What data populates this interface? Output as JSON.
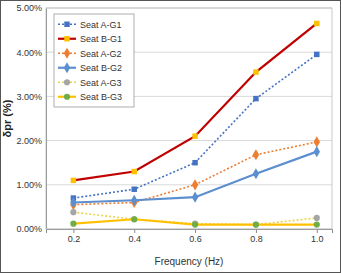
{
  "chart_data": {
    "type": "line",
    "x_label": "Frequency (Hz)",
    "y_label": "δpr (%)",
    "x": [
      0.2,
      0.4,
      0.6,
      0.8,
      1.0
    ],
    "xlim": [
      0.11,
      1.05
    ],
    "xticks": [
      0.2,
      0.4,
      0.6,
      0.8,
      {
        "value": 1.0,
        "label": "1.0"
      }
    ],
    "ylim": [
      0,
      5
    ],
    "yticks": [
      {
        "value": 0,
        "label": "0.00%"
      },
      {
        "value": 1,
        "label": "1.00%"
      },
      {
        "value": 2,
        "label": "2.00%"
      },
      {
        "value": 3,
        "label": "3.00%"
      },
      {
        "value": 4,
        "label": "4.00%"
      },
      {
        "value": 5,
        "label": "5.00%"
      }
    ],
    "grid": true,
    "legend": "upper left",
    "series": [
      {
        "name": "Seat A-G1",
        "color": "#4472c4",
        "line_style": "dotted",
        "marker": "square",
        "values": [
          0.7,
          0.9,
          1.5,
          2.95,
          3.95
        ]
      },
      {
        "name": "Seat B-G1",
        "color": "#c00000",
        "colors": [
          "#ffc000",
          "#ffc000",
          "#ffc000",
          "#ffc000",
          "#ffc000"
        ],
        "line_style": "solid",
        "marker": "square",
        "values": [
          1.1,
          1.3,
          2.1,
          3.55,
          4.65
        ]
      },
      {
        "name": "Seat A-G2",
        "color": "#ed7d31",
        "line_style": "dotted",
        "marker": "diamond",
        "values": [
          0.55,
          0.6,
          1.0,
          1.68,
          1.97
        ]
      },
      {
        "name": "Seat B-G2",
        "color": "#5b8fd0",
        "line_style": "solid",
        "marker": "diamond",
        "values": [
          0.6,
          0.65,
          0.72,
          1.25,
          1.75
        ]
      },
      {
        "name": "Seat A-G3",
        "color": "#e8d44d",
        "colors": [
          "#a5a5a5",
          "#a5a5a5",
          "#a5a5a5",
          "#a5a5a5",
          "#a5a5a5"
        ],
        "line_style": "dotted",
        "marker": "circle",
        "values": [
          0.38,
          0.22,
          0.12,
          0.1,
          0.25
        ]
      },
      {
        "name": "Seat B-G3",
        "color": "#ffc000",
        "colors": [
          "#70ad47",
          "#70ad47",
          "#70ad47",
          "#70ad47",
          "#70ad47"
        ],
        "line_style": "solid",
        "marker": "circle",
        "values": [
          0.12,
          0.22,
          0.1,
          0.1,
          0.1
        ]
      }
    ]
  }
}
